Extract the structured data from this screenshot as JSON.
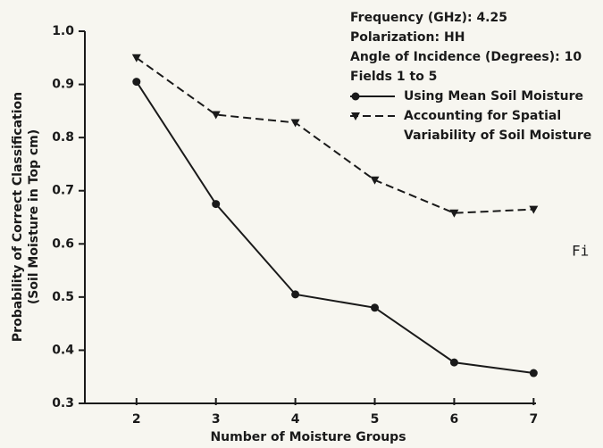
{
  "chart_data": {
    "type": "line",
    "xlabel": "Number of Moisture Groups",
    "ylabel": [
      "Probability of Correct Classification",
      "(Soil Moisture in Top cm)"
    ],
    "annotations": [
      "Frequency (GHz): 4.25",
      "Polarization: HH",
      "Angle of Incidence (Degrees): 10",
      "Fields 1 to 5"
    ],
    "side_text": "Fi",
    "x": [
      2,
      3,
      4,
      5,
      6,
      7
    ],
    "series": [
      {
        "name": "Using Mean Soil Moisture",
        "color": "#1a1a1a",
        "dash": "solid",
        "marker": "circle",
        "values": [
          0.905,
          0.675,
          0.505,
          0.48,
          0.377,
          0.357
        ]
      },
      {
        "name": "Accounting for Spatial Variability of Soil Moisture",
        "color": "#1a1a1a",
        "dash": "dashed",
        "marker": "triangle-down",
        "values": [
          0.95,
          0.843,
          0.828,
          0.72,
          0.658,
          0.665
        ]
      }
    ],
    "xlim": [
      1.35,
      7.03
    ],
    "xticks": [
      2,
      3,
      4,
      5,
      6,
      7
    ],
    "ylim": [
      0.3,
      1.0
    ],
    "yticks": [
      0.3,
      0.4,
      0.5,
      0.6,
      0.7,
      0.8,
      0.9,
      {
        "value": 1,
        "label": "1.0"
      }
    ],
    "grid": false
  }
}
